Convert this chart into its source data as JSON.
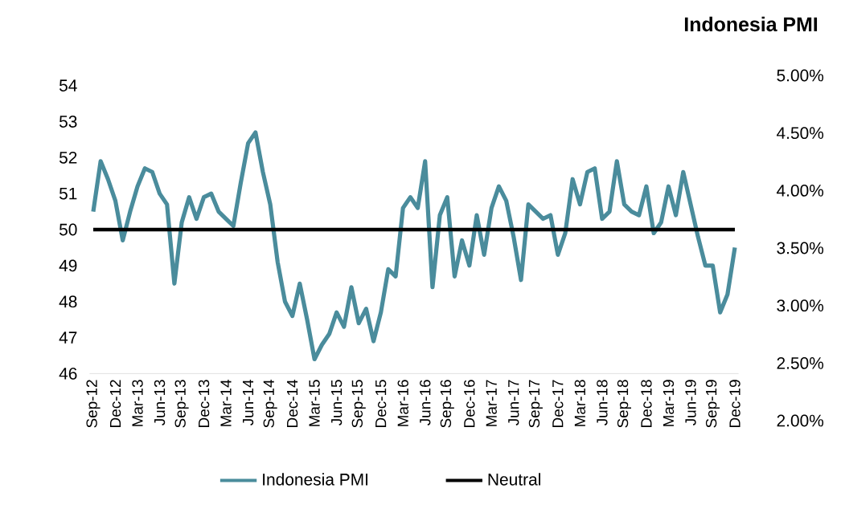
{
  "chart_data": {
    "type": "line",
    "title": "Indonesia PMI",
    "categories": [
      "Sep-12",
      null,
      null,
      "Dec-12",
      null,
      null,
      "Mar-13",
      null,
      null,
      "Jun-13",
      null,
      null,
      "Sep-13",
      null,
      null,
      "Dec-13",
      null,
      null,
      "Mar-14",
      null,
      null,
      "Jun-14",
      null,
      null,
      "Sep-14",
      null,
      null,
      "Dec-14",
      null,
      null,
      "Mar-15",
      null,
      null,
      "Jun-15",
      null,
      null,
      "Sep-15",
      null,
      null,
      "Dec-15",
      null,
      null,
      "Mar-16",
      null,
      null,
      "Jun-16",
      null,
      null,
      "Sep-16",
      null,
      null,
      "Dec-16",
      null,
      null,
      "Mar-17",
      null,
      null,
      "Jun-17",
      null,
      null,
      "Sep-17",
      null,
      null,
      "Dec-17",
      null,
      null,
      "Mar-18",
      null,
      null,
      "Jun-18",
      null,
      null,
      "Sep-18",
      null,
      null,
      "Dec-18",
      null,
      null,
      "Mar-19",
      null,
      null,
      "Jun-19",
      null,
      null,
      "Sep-19",
      null,
      null,
      "Dec-19"
    ],
    "series": [
      {
        "name": "Indonesia PMI",
        "color": "#4a8c9c",
        "values": [
          50.5,
          51.9,
          51.4,
          50.8,
          49.7,
          50.5,
          51.2,
          51.7,
          51.6,
          51.0,
          50.7,
          48.5,
          50.2,
          50.9,
          50.3,
          50.9,
          51.0,
          50.5,
          50.3,
          50.1,
          51.3,
          52.4,
          52.7,
          51.6,
          50.7,
          49.1,
          48.0,
          47.6,
          48.5,
          47.5,
          46.4,
          46.8,
          47.1,
          47.7,
          47.3,
          48.4,
          47.4,
          47.8,
          46.9,
          47.7,
          48.9,
          48.7,
          50.6,
          50.9,
          50.6,
          51.9,
          48.4,
          50.4,
          50.9,
          48.7,
          49.7,
          49.0,
          50.4,
          49.3,
          50.6,
          51.2,
          50.8,
          49.8,
          48.6,
          50.7,
          50.5,
          50.3,
          50.4,
          49.3,
          49.9,
          51.4,
          50.7,
          51.6,
          51.7,
          50.3,
          50.5,
          51.9,
          50.7,
          50.5,
          50.4,
          51.2,
          49.9,
          50.2,
          51.2,
          50.4,
          51.6,
          50.7,
          49.8,
          49.0,
          49.0,
          47.7,
          48.2,
          49.5
        ]
      },
      {
        "name": "Neutral",
        "color": "#000000",
        "values": [
          50,
          50,
          50,
          50,
          50,
          50,
          50,
          50,
          50,
          50,
          50,
          50,
          50,
          50,
          50,
          50,
          50,
          50,
          50,
          50,
          50,
          50,
          50,
          50,
          50,
          50,
          50,
          50,
          50,
          50,
          50,
          50,
          50,
          50,
          50,
          50,
          50,
          50,
          50,
          50,
          50,
          50,
          50,
          50,
          50,
          50,
          50,
          50,
          50,
          50,
          50,
          50,
          50,
          50,
          50,
          50,
          50,
          50,
          50,
          50,
          50,
          50,
          50,
          50,
          50,
          50,
          50,
          50,
          50,
          50,
          50,
          50,
          50,
          50,
          50,
          50,
          50,
          50,
          50,
          50,
          50,
          50,
          50,
          50,
          50,
          50,
          50,
          50
        ]
      }
    ],
    "ylim": [
      46,
      54
    ],
    "yticks": [
      46,
      47,
      48,
      49,
      50,
      51,
      52,
      53,
      54
    ],
    "y2lim": [
      2.0,
      5.0
    ],
    "y2ticks": [
      {
        "value": 2.0,
        "label": "2.00%"
      },
      {
        "value": 2.5,
        "label": "2.50%"
      },
      {
        "value": 3.0,
        "label": "3.00%"
      },
      {
        "value": 3.5,
        "label": "3.50%"
      },
      {
        "value": 4.0,
        "label": "4.00%"
      },
      {
        "value": 4.5,
        "label": "4.50%"
      },
      {
        "value": 5.0,
        "label": "5.00%"
      }
    ],
    "legend": "bottom",
    "grid": false,
    "marker": "none",
    "line_style": "solid"
  }
}
